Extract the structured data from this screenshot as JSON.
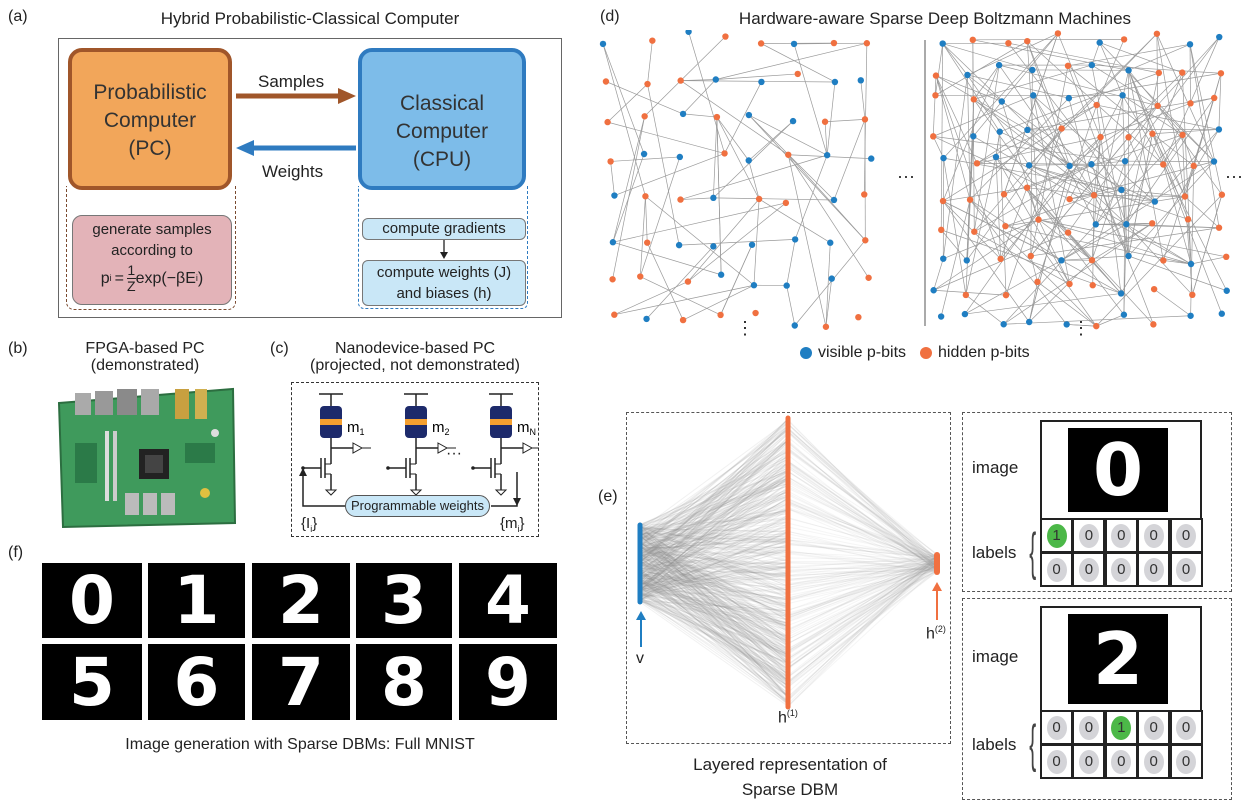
{
  "panel_a": {
    "label": "(a)",
    "title": "Hybrid Probabilistic-Classical Computer",
    "pc_box": [
      "Probabilistic",
      "Computer",
      "(PC)"
    ],
    "cpu_box": [
      "Classical",
      "Computer",
      "(CPU)"
    ],
    "samples_label": "Samples",
    "weights_label": "Weights",
    "pc_task": [
      "generate samples",
      "according to"
    ],
    "formula": {
      "lhs": "p",
      "sub": "i",
      "eq": "=",
      "num": "1",
      "den": "Z",
      "rhs": "exp(−βE",
      "rsub": "i",
      "close": ")"
    },
    "cpu_task_1": "compute gradients",
    "cpu_task_2": [
      "compute weights (J)",
      "and biases (h)"
    ],
    "colors": {
      "pc": "#f2a65a",
      "pc_border": "#a0562a",
      "cpu": "#7dbce9",
      "cpu_border": "#2f7bc0",
      "pink": "#e3b3b8",
      "lightblue": "#c9e7f7"
    }
  },
  "panel_b": {
    "label": "(b)",
    "title": [
      "FPGA-based PC",
      "(demonstrated)"
    ]
  },
  "panel_c": {
    "label": "(c)",
    "title": [
      "Nanodevice-based PC",
      "(projected, not demonstrated)"
    ],
    "devices": [
      "m",
      "m",
      "m"
    ],
    "device_subs": [
      "1",
      "2",
      "N"
    ],
    "ellipsis": "···",
    "weights_label": "Programmable weights",
    "input_label": "{I",
    "input_sub": "i",
    "output_label": "{m",
    "output_sub": "i"
  },
  "panel_d": {
    "label": "(d)",
    "title": "Hardware-aware Sparse Deep Boltzmann Machines",
    "ellipsis_h": "···",
    "ellipsis_v": "⋮",
    "legend": [
      {
        "label": "visible p-bits",
        "color": "#1f7ec2"
      },
      {
        "label": "hidden p-bits",
        "color": "#f07040"
      }
    ]
  },
  "panel_e": {
    "label": "(e)",
    "v_label": "v",
    "h1_label": "h",
    "h1_sup": "(1)",
    "h2_label": "h",
    "h2_sup": "(2)",
    "caption": [
      "Layered representation of",
      "Sparse DBM"
    ],
    "examples": [
      {
        "image_label": "image",
        "labels_label": "labels",
        "digit": "0",
        "labels": [
          [
            "1",
            "0",
            "0",
            "0",
            "0"
          ],
          [
            "0",
            "0",
            "0",
            "0",
            "0"
          ]
        ],
        "active": 0
      },
      {
        "image_label": "image",
        "labels_label": "labels",
        "digit": "2",
        "labels": [
          [
            "0",
            "0",
            "1",
            "0",
            "0"
          ],
          [
            "0",
            "0",
            "0",
            "0",
            "0"
          ]
        ],
        "active": 2
      }
    ]
  },
  "panel_f": {
    "label": "(f)",
    "digits": [
      "0",
      "1",
      "2",
      "3",
      "4",
      "5",
      "6",
      "7",
      "8",
      "9"
    ],
    "caption": "Image generation with Sparse DBMs: Full MNIST"
  }
}
